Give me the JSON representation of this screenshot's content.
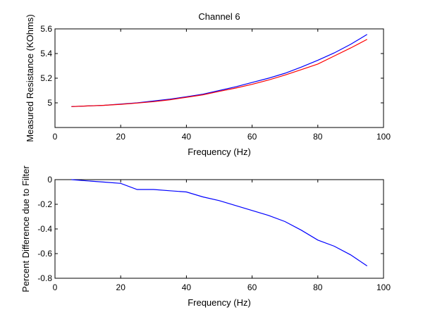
{
  "chart_data": [
    {
      "type": "line",
      "title": "Channel 6",
      "xlabel": "Frequency (Hz)",
      "ylabel": "Measured Resistance (KOhms)",
      "xlim": [
        0,
        100
      ],
      "ylim": [
        4.8,
        5.6
      ],
      "xticks": [
        0,
        20,
        40,
        60,
        80,
        100
      ],
      "yticks": [
        5,
        5.2,
        5.4,
        5.6
      ],
      "ytick_labels": [
        "5",
        "5.2",
        "5.4",
        "5.6"
      ],
      "grid": false,
      "series": [
        {
          "name": "blue",
          "color": "#0000ff",
          "x": [
            5,
            10,
            15,
            20,
            25,
            30,
            35,
            40,
            45,
            50,
            55,
            60,
            65,
            70,
            75,
            80,
            85,
            90,
            95
          ],
          "y": [
            4.97,
            4.975,
            4.98,
            4.99,
            5.0,
            5.015,
            5.03,
            5.05,
            5.07,
            5.1,
            5.13,
            5.165,
            5.2,
            5.24,
            5.29,
            5.345,
            5.405,
            5.475,
            5.555
          ]
        },
        {
          "name": "red",
          "color": "#ff0000",
          "x": [
            5,
            10,
            15,
            20,
            25,
            30,
            35,
            40,
            45,
            50,
            55,
            60,
            65,
            70,
            75,
            80,
            85,
            90,
            95
          ],
          "y": [
            4.97,
            4.975,
            4.98,
            4.988,
            4.998,
            5.01,
            5.025,
            5.045,
            5.065,
            5.093,
            5.12,
            5.15,
            5.185,
            5.225,
            5.27,
            5.315,
            5.38,
            5.445,
            5.515
          ]
        }
      ]
    },
    {
      "type": "line",
      "title": "",
      "xlabel": "Frequency (Hz)",
      "ylabel": "Percent Difference due to Filter",
      "xlim": [
        0,
        100
      ],
      "ylim": [
        -0.8,
        0
      ],
      "xticks": [
        0,
        20,
        40,
        60,
        80,
        100
      ],
      "yticks": [
        0,
        -0.2,
        -0.4,
        -0.6,
        -0.8
      ],
      "ytick_labels": [
        "0",
        "-0.2",
        "-0.4",
        "-0.6",
        "-0.8"
      ],
      "grid": false,
      "series": [
        {
          "name": "difference",
          "color": "#0000ff",
          "x": [
            5,
            10,
            15,
            20,
            25,
            30,
            35,
            40,
            45,
            50,
            55,
            60,
            65,
            70,
            75,
            80,
            85,
            90,
            95
          ],
          "y": [
            0.0,
            -0.01,
            -0.02,
            -0.03,
            -0.08,
            -0.08,
            -0.09,
            -0.1,
            -0.14,
            -0.17,
            -0.21,
            -0.25,
            -0.29,
            -0.34,
            -0.41,
            -0.49,
            -0.54,
            -0.61,
            -0.7
          ]
        }
      ]
    }
  ]
}
